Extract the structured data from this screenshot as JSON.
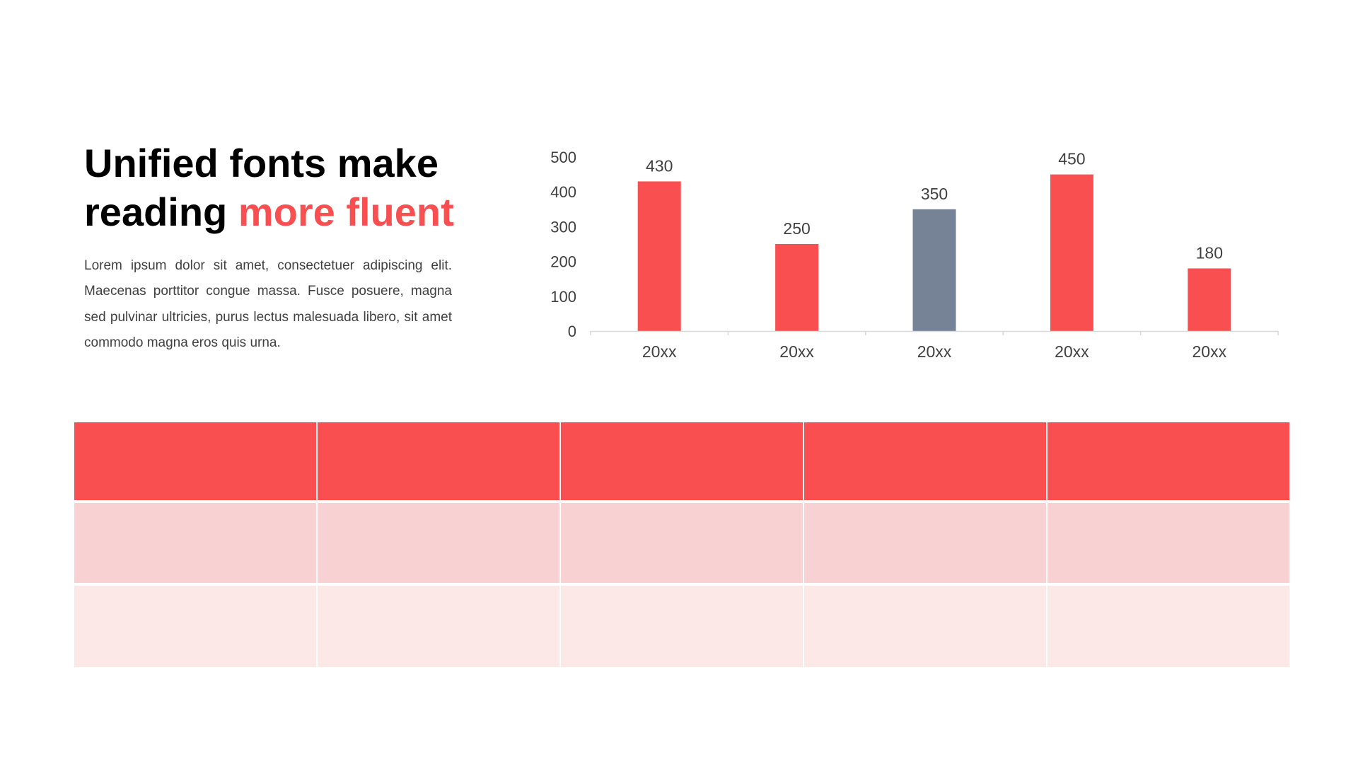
{
  "slide": {
    "title_line1": "Unified fonts make",
    "title_line2_plain": "reading ",
    "title_line2_accent": "more fluent",
    "body": "Lorem ipsum dolor sit amet, consectetuer adipiscing elit. Maecenas porttitor congue massa. Fusce posuere, magna sed pulvinar ultricies, purus lectus malesuada libero, sit amet commodo magna eros quis urna."
  },
  "colors": {
    "accent": "#f94f50",
    "highlight_bar": "#768396",
    "table_header": "#f94f50",
    "table_row1": "#f8d2d2",
    "table_row2": "#fde8e8",
    "axis": "#d9d9d9",
    "text": "#404040"
  },
  "chart_data": {
    "type": "bar",
    "categories": [
      "20xx",
      "20xx",
      "20xx",
      "20xx",
      "20xx"
    ],
    "values": [
      430,
      250,
      350,
      450,
      180
    ],
    "highlight_index": 2,
    "data_labels": [
      "430",
      "250",
      "350",
      "450",
      "180"
    ],
    "yticks": [
      "0",
      "100",
      "200",
      "300",
      "400",
      "500"
    ],
    "ylim": [
      0,
      500
    ],
    "title": "",
    "xlabel": "",
    "ylabel": "",
    "grid": false,
    "legend": "none"
  },
  "table": {
    "columns": 5,
    "rows": [
      [
        "",
        "",
        "",
        "",
        ""
      ],
      [
        "",
        "",
        "",
        "",
        ""
      ],
      [
        "",
        "",
        "",
        "",
        ""
      ]
    ]
  }
}
